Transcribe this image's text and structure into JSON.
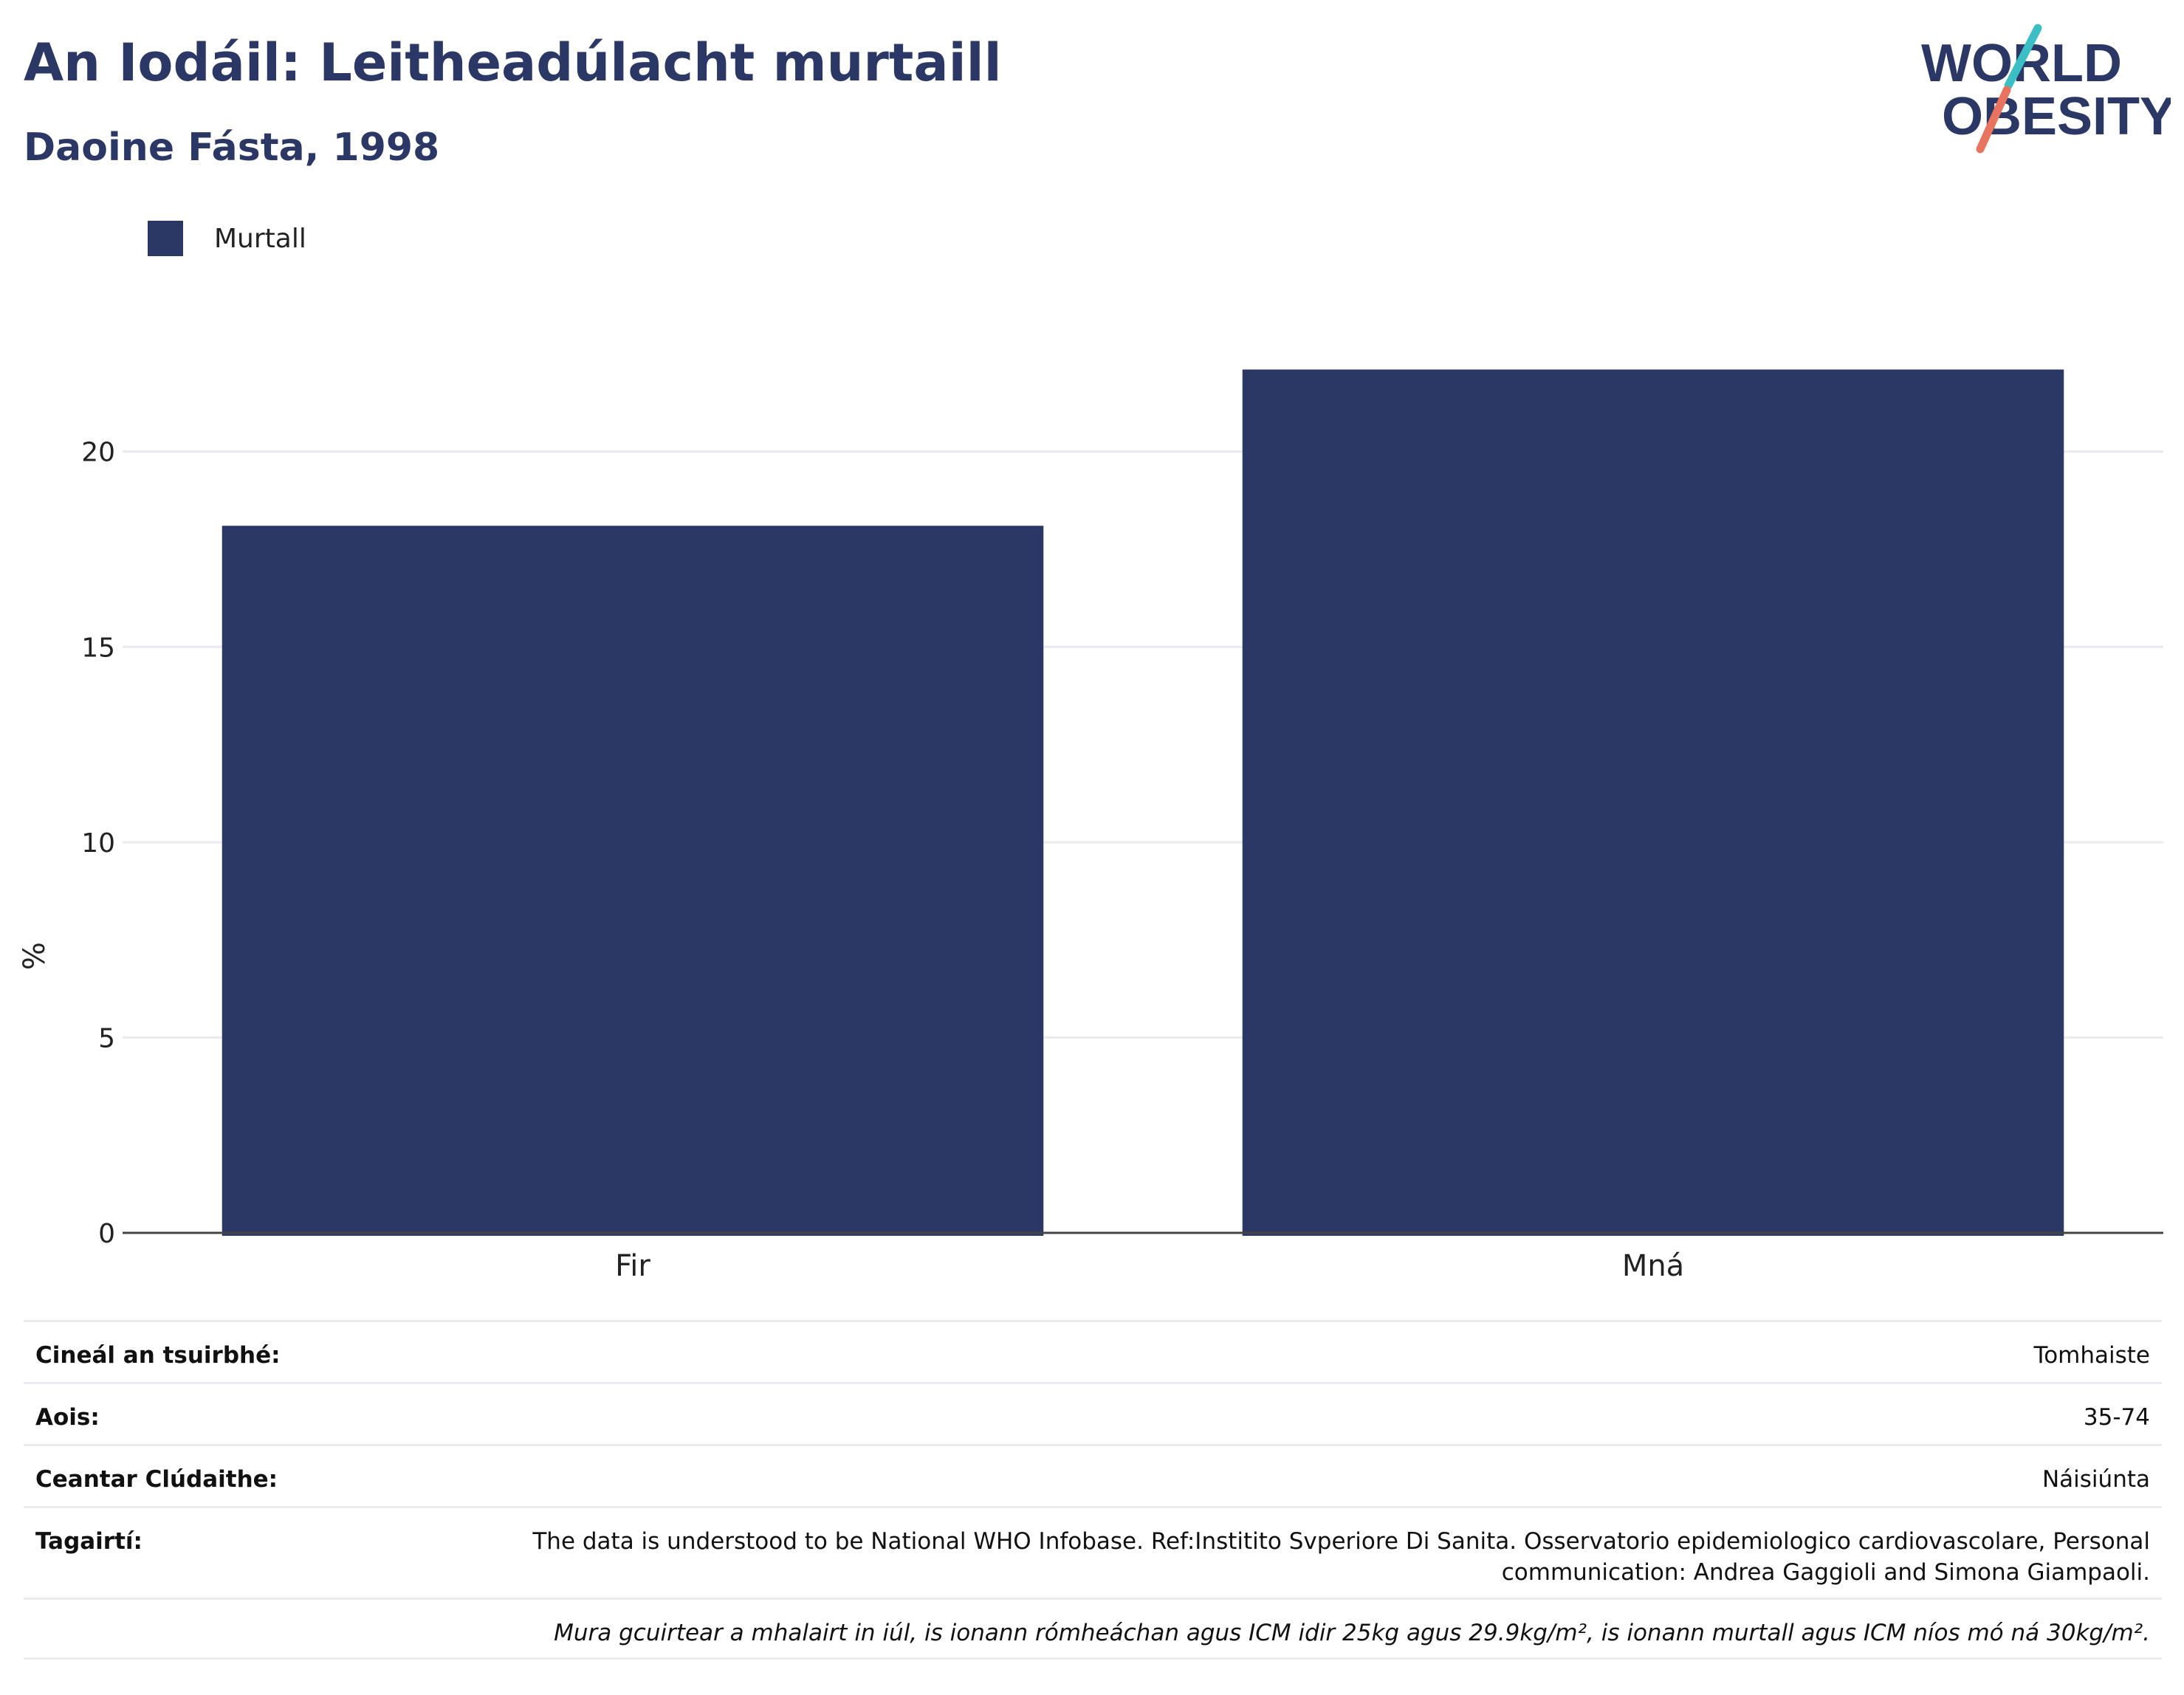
{
  "header": {
    "title": "An Iodáil: Leitheadúlacht murtaill",
    "subtitle": "Daoine Fásta, 1998"
  },
  "logo": {
    "line1": "WORLD",
    "line2": "OBESITY",
    "accent_teal": "#3bbfc4",
    "accent_coral": "#e8735f",
    "text_color": "#2b3764"
  },
  "legend": {
    "items": [
      {
        "label": "Murtall",
        "color": "#2b3764"
      }
    ],
    "placement": "top-left"
  },
  "chart_data": {
    "type": "bar",
    "title": "An Iodáil: Leitheadúlacht murtaill",
    "subtitle": "Daoine Fásta, 1998",
    "categories": [
      "Fir",
      "Mná"
    ],
    "series": [
      {
        "name": "Murtall",
        "values": [
          18.1,
          22.1
        ],
        "color": "#2b3764"
      }
    ],
    "xlabel": "",
    "ylabel": "%",
    "ylim": [
      0,
      24
    ],
    "yticks": [
      0,
      5,
      10,
      15,
      20
    ],
    "grid": true,
    "legend": "top-left"
  },
  "info": {
    "rows": [
      {
        "label": "Cineál an tsuirbhé:",
        "value": "Tomhaiste"
      },
      {
        "label": "Aois:",
        "value": "35-74"
      },
      {
        "label": "Ceantar Clúdaithe:",
        "value": "Náisiúnta"
      },
      {
        "label": "Tagairtí:",
        "value": "The data is understood to be National WHO Infobase. Ref:Institito Svperiore Di Sanita. Osservatorio epidemiologico cardiovascolare, Personal communication: Andrea Gaggioli and Simona Giampaoli."
      }
    ],
    "note": "Mura gcuirtear a mhalairt in iúl, is ionann rómheáchan agus ICM idir 25kg agus 29.9kg/m², is ionann murtall agus ICM níos mó ná 30kg/m²."
  }
}
